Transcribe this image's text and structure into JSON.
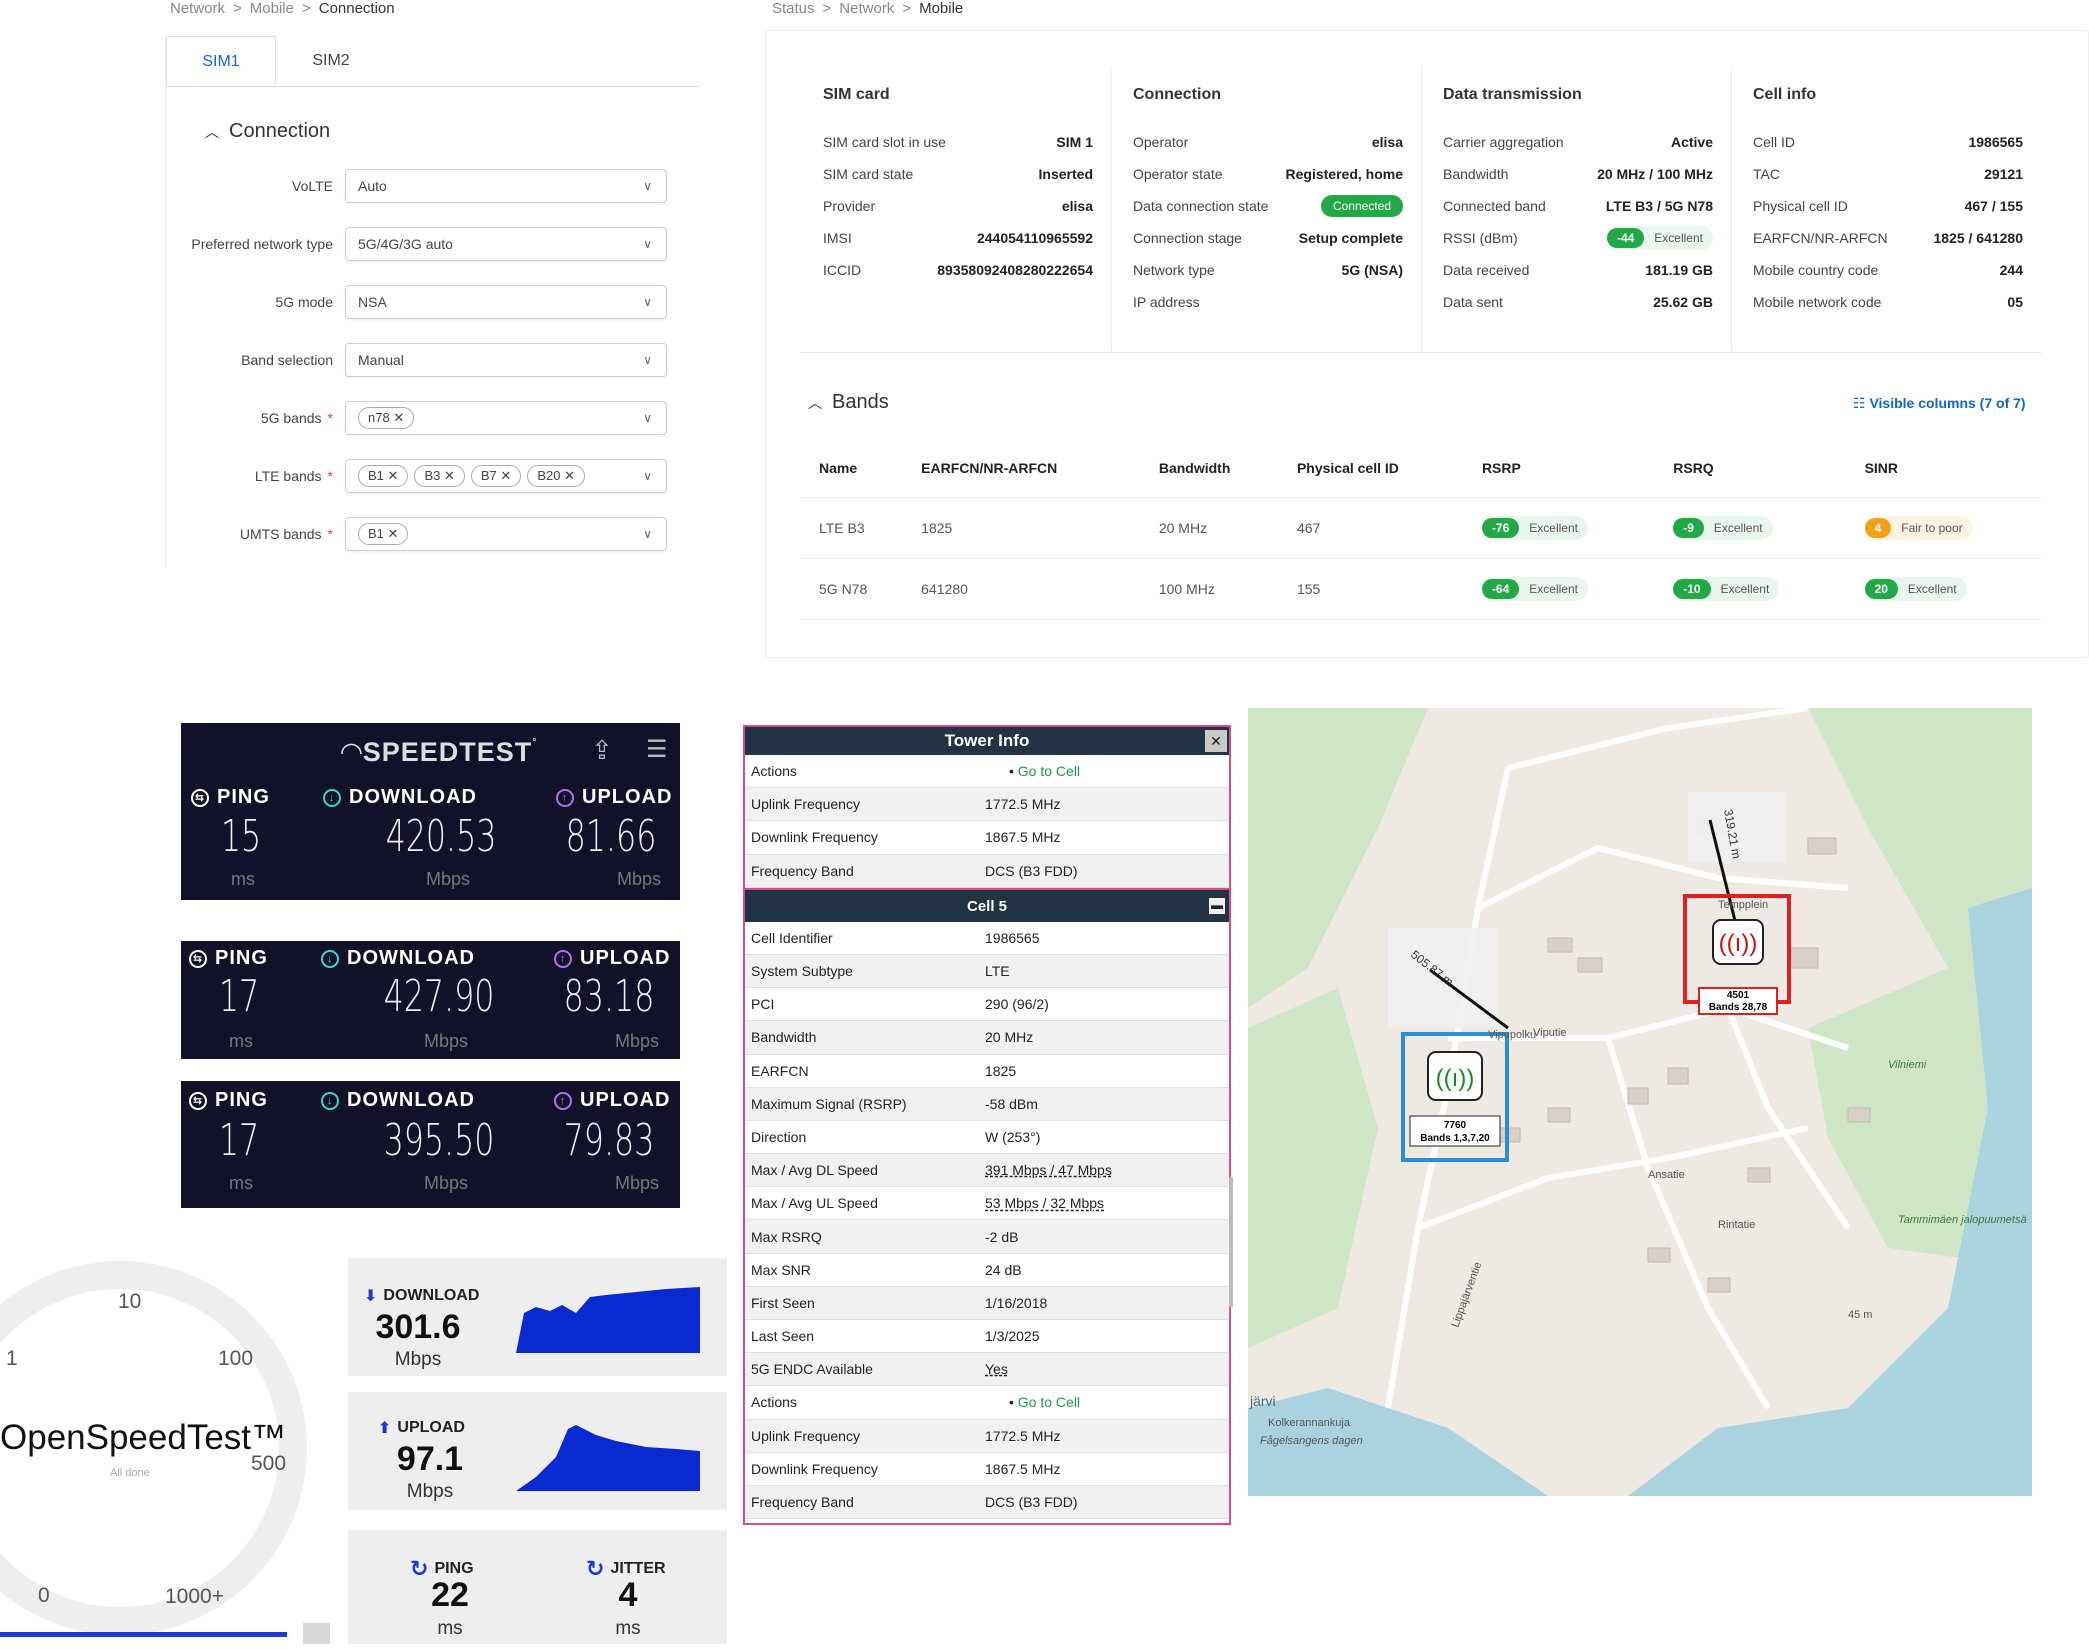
{
  "settings": {
    "breadcrumb": [
      "Network",
      "Mobile",
      "Connection"
    ],
    "tabs": [
      "SIM1",
      "SIM2"
    ],
    "section": "Connection",
    "fields": [
      {
        "label": "VoLTE",
        "value": "Auto",
        "required": false
      },
      {
        "label": "Preferred network type",
        "value": "5G/4G/3G auto",
        "required": false
      },
      {
        "label": "5G mode",
        "value": "NSA",
        "required": false
      },
      {
        "label": "Band selection",
        "value": "Manual",
        "required": false
      },
      {
        "label": "5G bands",
        "chips": [
          "n78"
        ],
        "required": true
      },
      {
        "label": "LTE bands",
        "chips": [
          "B1",
          "B3",
          "B7",
          "B20"
        ],
        "required": true
      },
      {
        "label": "UMTS bands",
        "chips": [
          "B1"
        ],
        "required": true
      }
    ]
  },
  "status": {
    "breadcrumb": [
      "Status",
      "Network",
      "Mobile"
    ],
    "sim": {
      "title": "SIM card",
      "rows": [
        [
          "SIM card slot in use",
          "SIM 1"
        ],
        [
          "SIM card state",
          "Inserted"
        ],
        [
          "Provider",
          "elisa"
        ],
        [
          "IMSI",
          "244054110965592"
        ],
        [
          "ICCID",
          "89358092408280222654"
        ]
      ]
    },
    "connection": {
      "title": "Connection",
      "rows": [
        [
          "Operator",
          "elisa"
        ],
        [
          "Operator state",
          "Registered, home"
        ],
        [
          "Data connection state",
          "Connected"
        ],
        [
          "Connection stage",
          "Setup complete"
        ],
        [
          "Network type",
          "5G (NSA)"
        ],
        [
          "IP address",
          ""
        ]
      ]
    },
    "data": {
      "title": "Data transmission",
      "rows": [
        [
          "Carrier aggregation",
          "Active"
        ],
        [
          "Bandwidth",
          "20 MHz / 100 MHz"
        ],
        [
          "Connected band",
          "LTE B3 / 5G N78"
        ],
        [
          "RSSI (dBm)",
          "-44",
          "Excellent"
        ],
        [
          "Data received",
          "181.19 GB"
        ],
        [
          "Data sent",
          "25.62 GB"
        ]
      ]
    },
    "cell": {
      "title": "Cell info",
      "rows": [
        [
          "Cell ID",
          "1986565"
        ],
        [
          "TAC",
          "29121"
        ],
        [
          "Physical cell ID",
          "467 / 155"
        ],
        [
          "EARFCN/NR-ARFCN",
          "1825 / 641280"
        ],
        [
          "Mobile country code",
          "244"
        ],
        [
          "Mobile network code",
          "05"
        ]
      ]
    },
    "bands": {
      "title": "Bands",
      "visible_columns": "Visible columns (7 of 7)",
      "headers": [
        "Name",
        "EARFCN/NR-ARFCN",
        "Bandwidth",
        "Physical cell ID",
        "RSRP",
        "RSRQ",
        "SINR"
      ],
      "rows": [
        {
          "name": "LTE B3",
          "earfcn": "1825",
          "bw": "20 MHz",
          "pci": "467",
          "rsrp": [
            "-76",
            "Excellent"
          ],
          "rsrq": [
            "-9",
            "Excellent"
          ],
          "sinr": [
            "4",
            "Fair to poor"
          ]
        },
        {
          "name": "5G N78",
          "earfcn": "641280",
          "bw": "100 MHz",
          "pci": "155",
          "rsrp": [
            "-64",
            "Excellent"
          ],
          "rsrq": [
            "-10",
            "Excellent"
          ],
          "sinr": [
            "20",
            "Excellent"
          ]
        }
      ]
    }
  },
  "speedtest": {
    "logo": "SPEEDTEST",
    "labels": {
      "ping": "PING",
      "download": "DOWNLOAD",
      "upload": "UPLOAD",
      "ms": "ms",
      "mbps": "Mbps"
    },
    "results": [
      {
        "ping": "15",
        "download": "420.53",
        "upload": "81.66"
      },
      {
        "ping": "17",
        "download": "427.90",
        "upload": "83.18"
      },
      {
        "ping": "17",
        "download": "395.50",
        "upload": "79.83"
      }
    ]
  },
  "tower": {
    "title": "Tower Info",
    "top_rows": [
      [
        "Actions",
        "Go to Cell"
      ],
      [
        "Uplink Frequency",
        "1772.5 MHz"
      ],
      [
        "Downlink Frequency",
        "1867.5 MHz"
      ],
      [
        "Frequency Band",
        "DCS (B3 FDD)"
      ]
    ],
    "cell_title": "Cell 5",
    "cell_rows": [
      [
        "Cell Identifier",
        "1986565"
      ],
      [
        "System Subtype",
        "LTE"
      ],
      [
        "PCI",
        "290 (96/2)"
      ],
      [
        "Bandwidth",
        "20 MHz"
      ],
      [
        "EARFCN",
        "1825"
      ],
      [
        "Maximum Signal (RSRP)",
        "-58 dBm"
      ],
      [
        "Direction",
        "W (253°)"
      ],
      [
        "Max / Avg DL Speed",
        "391 Mbps / 47 Mbps"
      ],
      [
        "Max / Avg UL Speed",
        "53 Mbps / 32 Mbps"
      ],
      [
        "Max RSRQ",
        "-2 dB"
      ],
      [
        "Max SNR",
        "24 dB"
      ],
      [
        "First Seen",
        "1/16/2018"
      ],
      [
        "Last Seen",
        "1/3/2025"
      ],
      [
        "5G ENDC Available",
        "Yes"
      ],
      [
        "Actions",
        "Go to Cell"
      ],
      [
        "Uplink Frequency",
        "1772.5 MHz"
      ],
      [
        "Downlink Frequency",
        "1867.5 MHz"
      ],
      [
        "Frequency Band",
        "DCS (B3 FDD)"
      ]
    ]
  },
  "map": {
    "towers": [
      {
        "id": "4501",
        "bands": "Bands 28,78",
        "distance": "319.21 m"
      },
      {
        "id": "7760",
        "bands": "Bands 1,3,7,20",
        "distance": "505.87 m"
      }
    ],
    "labels": [
      "Viputie",
      "Vipupolku",
      "Tempplein",
      "Ansatie",
      "Rintatie",
      "Vilniemi",
      "Tammimäen jalopuumetsä",
      "Fågelsangens dagen",
      "Kolkerannankuja",
      "Lippajärventie",
      "järvi",
      "45 m"
    ]
  },
  "ost": {
    "brand": "OpenSpeedTest™",
    "status": "All done",
    "gauge_ticks": [
      "10",
      "1",
      "100",
      "500",
      "0",
      "1000+"
    ],
    "download": {
      "label": "DOWNLOAD",
      "value": "301.6",
      "unit": "Mbps"
    },
    "upload": {
      "label": "UPLOAD",
      "value": "97.1",
      "unit": "Mbps"
    },
    "ping": {
      "label": "PING",
      "value": "22",
      "unit": "ms"
    },
    "jitter": {
      "label": "JITTER",
      "value": "4",
      "unit": "ms"
    },
    "accent": "#1a3ad1"
  }
}
